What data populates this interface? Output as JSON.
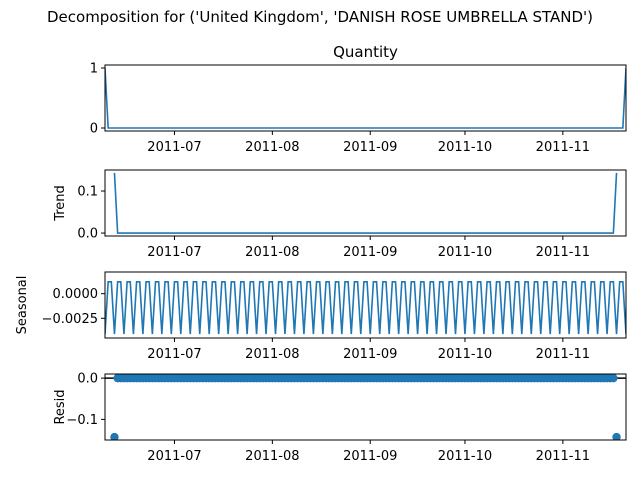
{
  "figure": {
    "suptitle": "Decomposition for ('United Kingdom', 'DANISH ROSE UMBRELLA STAND')"
  },
  "colors": {
    "series": "#1f77b4",
    "axis": "#000000"
  },
  "chart_data": [
    {
      "type": "line",
      "title": "Quantity",
      "ylabel": "",
      "x_range": [
        "2011-06-09",
        "2011-11-21"
      ],
      "ylim": [
        -0.05,
        1.05
      ],
      "yticks": [
        {
          "value": 0,
          "label": "0"
        },
        {
          "value": 1,
          "label": "1"
        }
      ],
      "xticks": [
        {
          "value": "2011-07-01",
          "label": "2011-07"
        },
        {
          "value": "2011-08-01",
          "label": "2011-08"
        },
        {
          "value": "2011-09-01",
          "label": "2011-09"
        },
        {
          "value": "2011-10-01",
          "label": "2011-10"
        },
        {
          "value": "2011-11-01",
          "label": "2011-11"
        }
      ],
      "points": [
        {
          "x": "2011-06-09",
          "y": 1
        },
        {
          "x": "2011-06-10",
          "y": 0
        },
        {
          "x": "2011-11-20",
          "y": 0
        },
        {
          "x": "2011-11-21",
          "y": 1
        }
      ]
    },
    {
      "type": "line",
      "title": "",
      "ylabel": "Trend",
      "x_range": [
        "2011-06-09",
        "2011-11-21"
      ],
      "ylim": [
        -0.007,
        0.15
      ],
      "yticks": [
        {
          "value": 0.0,
          "label": "0.0"
        },
        {
          "value": 0.1,
          "label": "0.1"
        }
      ],
      "xticks": [
        {
          "value": "2011-07-01",
          "label": "2011-07"
        },
        {
          "value": "2011-08-01",
          "label": "2011-08"
        },
        {
          "value": "2011-09-01",
          "label": "2011-09"
        },
        {
          "value": "2011-10-01",
          "label": "2011-10"
        },
        {
          "value": "2011-11-01",
          "label": "2011-11"
        }
      ],
      "points": [
        {
          "x": "2011-06-12",
          "y": 0.143
        },
        {
          "x": "2011-06-13",
          "y": 0
        },
        {
          "x": "2011-11-17",
          "y": 0
        },
        {
          "x": "2011-11-18",
          "y": 0.143
        }
      ]
    },
    {
      "type": "line",
      "title": "",
      "ylabel": "Seasonal",
      "x_range": [
        "2011-06-09",
        "2011-11-21"
      ],
      "ylim": [
        -0.0045,
        0.0022
      ],
      "yticks": [
        {
          "value": 0.0,
          "label": "0.0000"
        },
        {
          "value": -0.0025,
          "label": "−0.0025"
        }
      ],
      "xticks": [
        {
          "value": "2011-07-01",
          "label": "2011-07"
        },
        {
          "value": "2011-08-01",
          "label": "2011-08"
        },
        {
          "value": "2011-09-01",
          "label": "2011-09"
        },
        {
          "value": "2011-10-01",
          "label": "2011-10"
        },
        {
          "value": "2011-11-01",
          "label": "2011-11"
        }
      ],
      "seasonal_period_days": 3,
      "seasonal_pattern": [
        -0.0041,
        0.0012,
        0.0012
      ]
    },
    {
      "type": "scatter",
      "title": "",
      "ylabel": "Resid",
      "x_range": [
        "2011-06-09",
        "2011-11-21"
      ],
      "ylim": [
        -0.15,
        0.01
      ],
      "yticks": [
        {
          "value": 0.0,
          "label": "0.0"
        },
        {
          "value": -0.1,
          "label": "−0.1"
        }
      ],
      "xticks": [
        {
          "value": "2011-07-01",
          "label": "2011-07"
        },
        {
          "value": "2011-08-01",
          "label": "2011-08"
        },
        {
          "value": "2011-09-01",
          "label": "2011-09"
        },
        {
          "value": "2011-10-01",
          "label": "2011-10"
        },
        {
          "value": "2011-11-01",
          "label": "2011-11"
        }
      ],
      "baseline": 0,
      "resid_range": [
        "2011-06-12",
        "2011-11-18"
      ],
      "resid_default": 0,
      "resid_outliers": [
        {
          "x": "2011-06-12",
          "y": -0.143
        },
        {
          "x": "2011-11-18",
          "y": -0.143
        }
      ]
    }
  ]
}
